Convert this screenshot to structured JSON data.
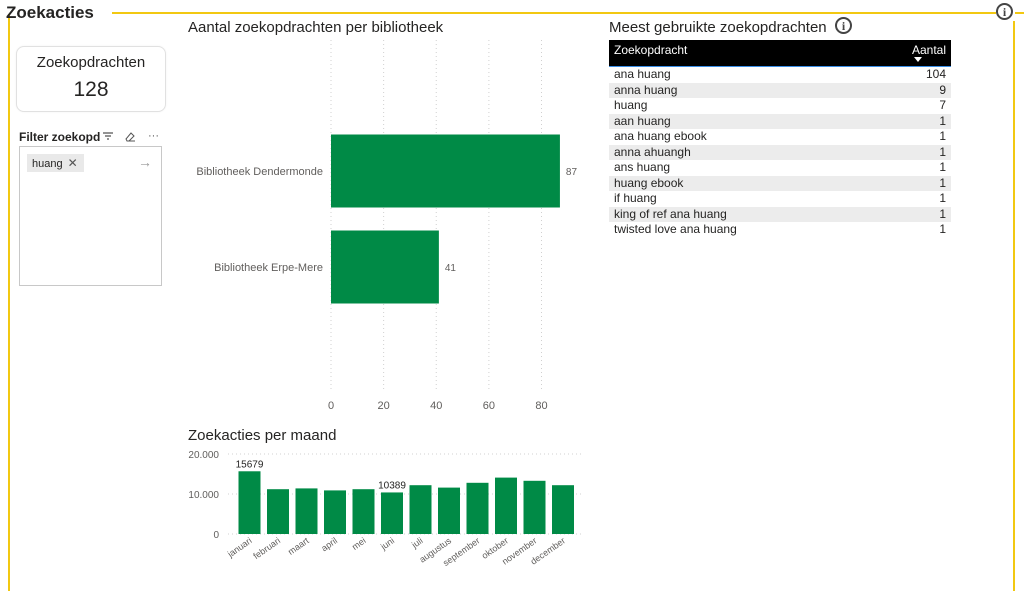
{
  "page": {
    "title": "Zoekacties",
    "info_icon": "info-icon"
  },
  "card": {
    "label": "Zoekopdrachten",
    "value": "128"
  },
  "filter": {
    "title": "Filter zoekopdracht",
    "chip": "huang",
    "icons": {
      "filter": "filter-lines-icon",
      "eraser": "eraser-icon",
      "more": "more-options-icon",
      "remove": "close-icon",
      "apply": "arrow-right-icon"
    }
  },
  "bar_chart": {
    "title": "Aantal zoekopdrachten per bibliotheek",
    "color": "#008A46"
  },
  "month_chart": {
    "title": "Zoekacties per maand",
    "color": "#008A46"
  },
  "table": {
    "title": "Meest gebruikte zoekopdrachten",
    "header": {
      "col1": "Zoekopdracht",
      "col2": "Aantal"
    },
    "rows": [
      {
        "term": "ana huang",
        "count": "104"
      },
      {
        "term": "anna huang",
        "count": "9"
      },
      {
        "term": "huang",
        "count": "7"
      },
      {
        "term": "aan huang",
        "count": "1"
      },
      {
        "term": "ana huang ebook",
        "count": "1"
      },
      {
        "term": "anna ahuangh",
        "count": "1"
      },
      {
        "term": "ans huang",
        "count": "1"
      },
      {
        "term": "huang ebook",
        "count": "1"
      },
      {
        "term": "if huang",
        "count": "1"
      },
      {
        "term": "king of ref ana huang",
        "count": "1"
      },
      {
        "term": "twisted love ana huang",
        "count": "1"
      }
    ]
  },
  "chart_data": [
    {
      "type": "bar",
      "orientation": "horizontal",
      "title": "Aantal zoekopdrachten per bibliotheek",
      "categories": [
        "Bibliotheek Dendermonde",
        "Bibliotheek Erpe-Mere"
      ],
      "values": [
        87,
        41
      ],
      "data_labels": [
        "87",
        "41"
      ],
      "xlim": [
        0,
        90
      ],
      "xticks": [
        "0",
        "20",
        "40",
        "60",
        "80"
      ],
      "grid": true,
      "xlabel": "",
      "ylabel": ""
    },
    {
      "type": "bar",
      "title": "Zoekacties per maand",
      "categories": [
        "januari",
        "februari",
        "maart",
        "april",
        "mei",
        "juni",
        "juli",
        "augustus",
        "september",
        "oktober",
        "november",
        "december"
      ],
      "values": [
        15679,
        11200,
        11400,
        10900,
        11200,
        10389,
        12200,
        11600,
        12800,
        14100,
        13300,
        12200
      ],
      "data_labels": [
        {
          "index": 0,
          "text": "15679"
        },
        {
          "index": 5,
          "text": "10389"
        }
      ],
      "ylim": [
        0,
        20000
      ],
      "yticks": [
        "0",
        "10.000",
        "20.000"
      ],
      "grid": true,
      "xlabel": "",
      "ylabel": ""
    }
  ]
}
